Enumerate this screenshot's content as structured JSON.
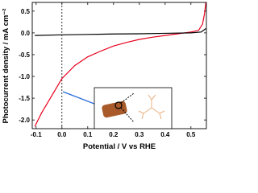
{
  "chart_data": {
    "type": "line",
    "xlabel": "Potential / V vs RHE",
    "ylabel": "Photocurrent density / mA cm⁻²",
    "xlim": [
      -0.115,
      0.56
    ],
    "ylim": [
      -2.2,
      0.7
    ],
    "xticks": [
      -0.1,
      {
        "value": 0,
        "label": "0.0"
      },
      0.1,
      0.2,
      0.3,
      0.4,
      0.5
    ],
    "yticks": [
      0.5,
      {
        "value": 0,
        "label": "0.0"
      },
      -0.5,
      {
        "value": -1,
        "label": "-1.0"
      },
      -1.5,
      {
        "value": -2,
        "label": "-2.0"
      }
    ],
    "vlines": [
      0
    ],
    "series": [
      {
        "color": "#e8001c",
        "x": [
          -0.105,
          -0.08,
          -0.05,
          -0.02,
          0.0,
          0.05,
          0.1,
          0.15,
          0.2,
          0.25,
          0.3,
          0.35,
          0.4,
          0.45,
          0.5,
          0.53,
          0.545,
          0.553,
          0.558
        ],
        "values": [
          -2.15,
          -1.85,
          -1.55,
          -1.25,
          -1.05,
          -0.75,
          -0.55,
          -0.42,
          -0.3,
          -0.22,
          -0.15,
          -0.1,
          -0.06,
          -0.02,
          0.02,
          0.06,
          0.2,
          0.45,
          0.7
        ]
      },
      {
        "color": "#000000",
        "x": [
          -0.105,
          0.0,
          0.1,
          0.2,
          0.3,
          0.4,
          0.5,
          0.54,
          0.558
        ],
        "values": [
          -0.06,
          -0.045,
          -0.035,
          -0.025,
          -0.02,
          -0.01,
          0.0,
          0.02,
          0.1
        ]
      }
    ]
  }
}
